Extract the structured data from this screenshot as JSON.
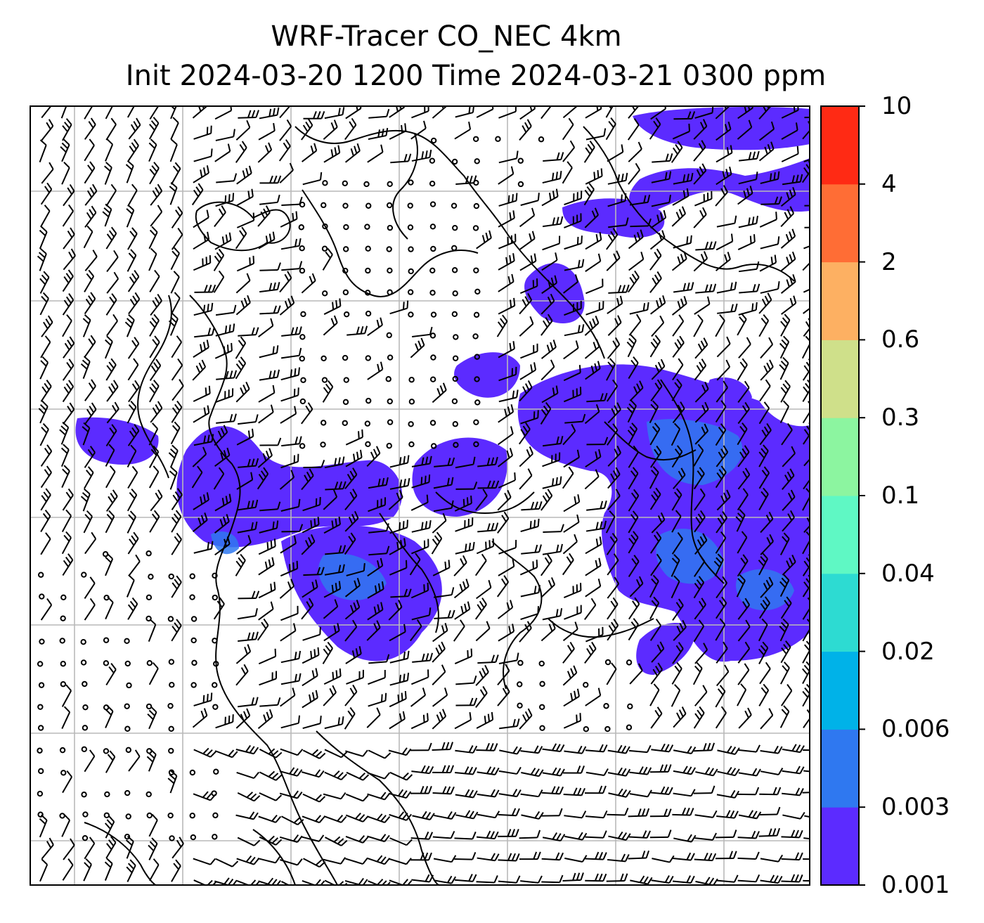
{
  "title": {
    "line1": "WRF-Tracer CO_NEC 4km",
    "line2": "Init 2024-03-20 1200 Time 2024-03-21 0300 ppm"
  },
  "colorbar": {
    "levels": [
      "0.001",
      "0.003",
      "0.006",
      "0.02",
      "0.04",
      "0.1",
      "0.3",
      "0.6",
      "2",
      "4",
      "10"
    ],
    "colors": [
      "#5c2bff",
      "#2f78f0",
      "#00b2e8",
      "#2ddbd2",
      "#5ff8c4",
      "#8cf5a0",
      "#cfe08a",
      "#fdb062",
      "#ff6d35",
      "#ff2a14"
    ]
  },
  "map": {
    "plume_color": "#5c2bff",
    "plume_core_color": "#2f78f0",
    "grid_color": "#b9b9b9"
  }
}
